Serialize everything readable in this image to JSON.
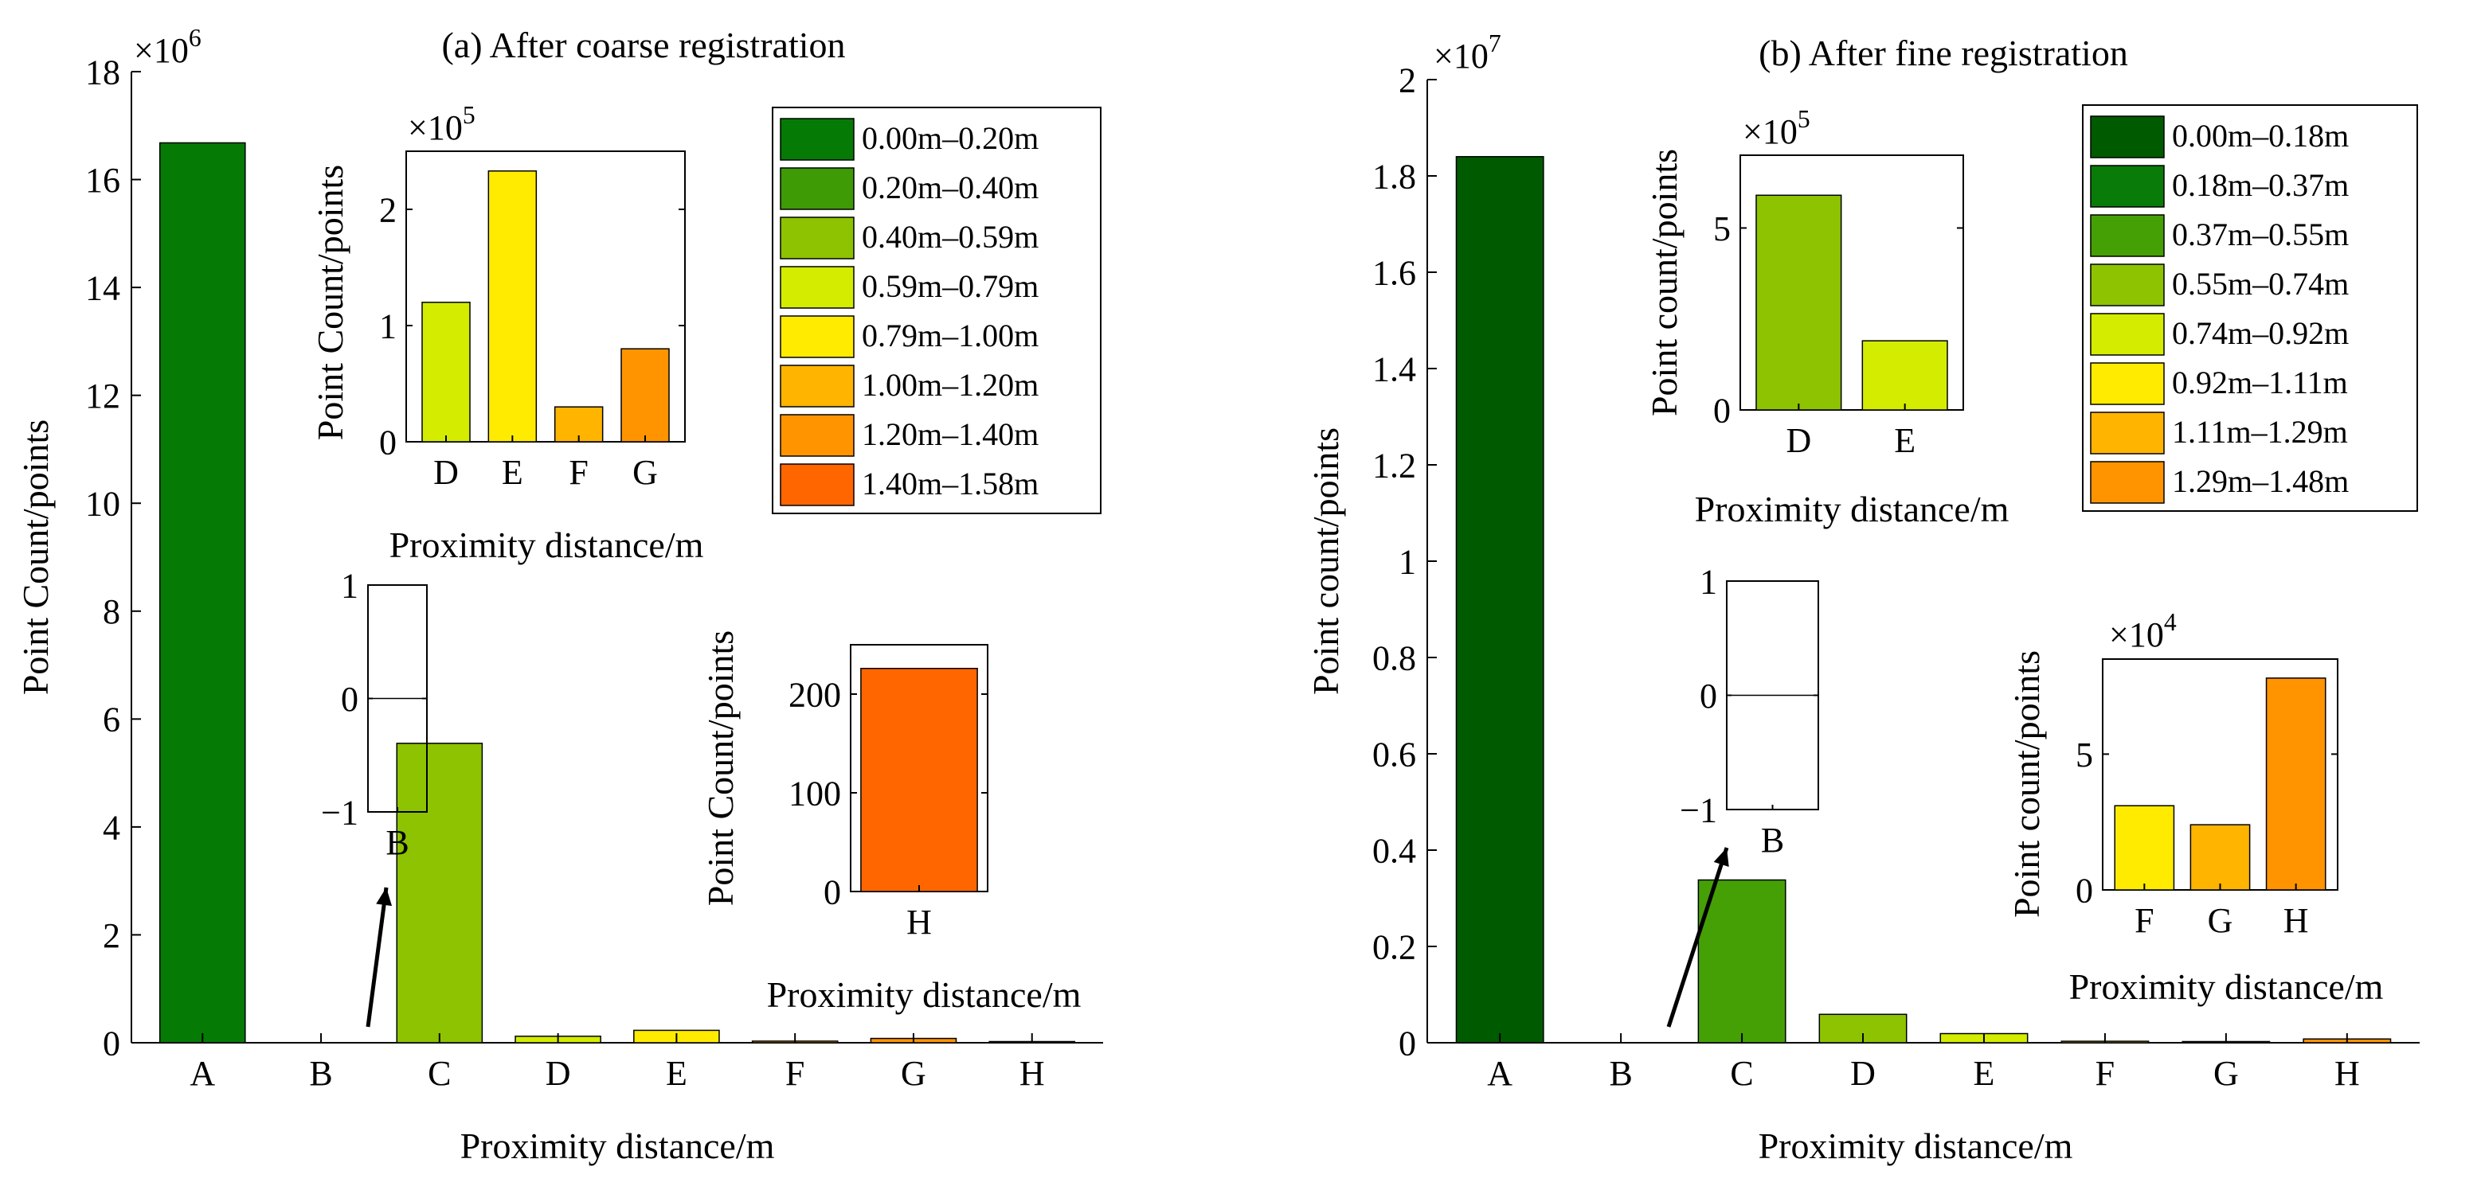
{
  "colors": {
    "c000_018": "#005A00",
    "c000_020": "#057A05",
    "c018_037": "#097B09",
    "c020_040": "#3E9A05",
    "c037_055": "#45A005",
    "c040_059": "#8DC300",
    "c055_074": "#8DC300",
    "c059_079": "#D3EC00",
    "c074_092": "#D3EC00",
    "c079_100": "#FFEB00",
    "c092_111": "#FFEB00",
    "c100_120": "#FFB400",
    "c111_129": "#FFB400",
    "c120_140": "#FF9400",
    "c129_148": "#FF9400",
    "c140_158": "#FF6600",
    "zero_line": "#000000"
  },
  "chart_data": [
    {
      "id": "a",
      "type": "bar",
      "title": "(a) After coarse registration",
      "xlabel": "Proximity distance/m",
      "ylabel": "Point Count/points",
      "exponent": "6",
      "exponent_base": "×10",
      "ylim": [
        0,
        18
      ],
      "yticks": [
        "0",
        "2",
        "4",
        "6",
        "8",
        "10",
        "12",
        "14",
        "16",
        "18"
      ],
      "categories": [
        "A",
        "B",
        "C",
        "D",
        "E",
        "F",
        "G",
        "H"
      ],
      "values": [
        16.68,
        0,
        5.55,
        0.12,
        0.23,
        0.03,
        0.08,
        0.00023
      ],
      "bar_colors": [
        "#057A05",
        "#3E9A05",
        "#8DC300",
        "#D3EC00",
        "#FFEB00",
        "#FFB400",
        "#FF9400",
        "#FF6600"
      ],
      "legend_position": "top-right",
      "legend": [
        "0.00m–0.20m",
        "0.20m–0.40m",
        "0.40m–0.59m",
        "0.59m–0.79m",
        "0.79m–1.00m",
        "1.00m–1.20m",
        "1.20m–1.40m",
        "1.40m–1.58m"
      ],
      "insets": [
        {
          "id": "a-defg",
          "type": "bar",
          "categories": [
            "D",
            "E",
            "F",
            "G"
          ],
          "values": [
            1.2,
            2.33,
            0.3,
            0.8
          ],
          "bar_colors": [
            "#D3EC00",
            "#FFEB00",
            "#FFB400",
            "#FF9400"
          ],
          "ylim": [
            0,
            2.5
          ],
          "yticks": [
            "0",
            "1",
            "2"
          ],
          "exponent": "5",
          "exponent_base": "×10",
          "xlabel": "Proximity distance/m",
          "ylabel": "Point Count/points"
        },
        {
          "id": "a-b",
          "type": "bar",
          "categories": [
            "B"
          ],
          "values": [
            0
          ],
          "ylim": [
            -1,
            1
          ],
          "yticks": [
            "−1",
            "0",
            "1"
          ]
        },
        {
          "id": "a-h",
          "type": "bar",
          "categories": [
            "H"
          ],
          "values": [
            226
          ],
          "bar_colors": [
            "#FF6600"
          ],
          "ylim": [
            0,
            250
          ],
          "yticks": [
            "0",
            "100",
            "200"
          ],
          "xlabel": "Proximity distance/m",
          "ylabel": "Point Count/points"
        }
      ]
    },
    {
      "id": "b",
      "type": "bar",
      "title": "(b) After fine registration",
      "xlabel": "Proximity distance/m",
      "ylabel": "Point count/points",
      "exponent": "7",
      "exponent_base": "×10",
      "ylim": [
        0,
        2
      ],
      "yticks": [
        "0",
        "0.2",
        "0.4",
        "0.6",
        "0.8",
        "1",
        "1.2",
        "1.4",
        "1.6",
        "1.8",
        "2"
      ],
      "categories": [
        "A",
        "B",
        "C",
        "D",
        "E",
        "F",
        "G",
        "H"
      ],
      "values": [
        1.84,
        0,
        0.338,
        0.059,
        0.019,
        0.0031,
        0.0024,
        0.0078
      ],
      "bar_colors": [
        "#005A00",
        "#097B09",
        "#45A005",
        "#8DC300",
        "#D3EC00",
        "#FFEB00",
        "#FFB400",
        "#FF9400"
      ],
      "legend_position": "top-right",
      "legend": [
        "0.00m–0.18m",
        "0.18m–0.37m",
        "0.37m–0.55m",
        "0.55m–0.74m",
        "0.74m–0.92m",
        "0.92m–1.11m",
        "1.11m–1.29m",
        "1.29m–1.48m"
      ],
      "insets": [
        {
          "id": "b-de",
          "type": "bar",
          "categories": [
            "D",
            "E"
          ],
          "values": [
            5.9,
            1.9
          ],
          "bar_colors": [
            "#8DC300",
            "#D3EC00"
          ],
          "ylim": [
            0,
            7
          ],
          "yticks": [
            "0",
            "5"
          ],
          "exponent": "5",
          "exponent_base": "×10",
          "xlabel": "Proximity distance/m",
          "ylabel": "Point count/points"
        },
        {
          "id": "b-b",
          "type": "bar",
          "categories": [
            "B"
          ],
          "values": [
            0
          ],
          "ylim": [
            -1,
            1
          ],
          "yticks": [
            "−1",
            "0",
            "1"
          ]
        },
        {
          "id": "b-fgh",
          "type": "bar",
          "categories": [
            "F",
            "G",
            "H"
          ],
          "values": [
            3.1,
            2.4,
            7.8
          ],
          "bar_colors": [
            "#FFEB00",
            "#FFB400",
            "#FF9400"
          ],
          "ylim": [
            0,
            8.5
          ],
          "yticks": [
            "0",
            "5"
          ],
          "exponent": "4",
          "exponent_base": "×10",
          "xlabel": "Proximity distance/m",
          "ylabel": "Point count/points"
        }
      ]
    }
  ]
}
